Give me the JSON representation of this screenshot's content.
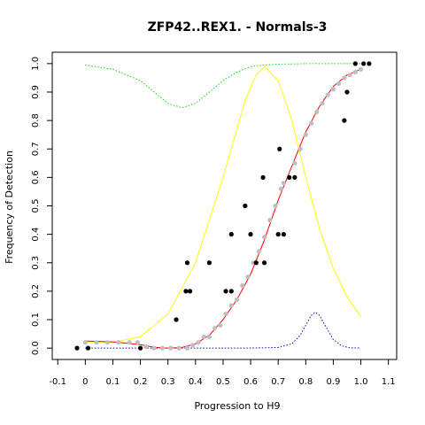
{
  "chart_data": {
    "type": "scatter",
    "title": "ZFP42..REX1. - Normals-3",
    "xlabel": "Progression to H9",
    "ylabel": "Frequency of Detection",
    "xlim": [
      -0.12,
      1.13
    ],
    "ylim": [
      -0.04,
      1.04
    ],
    "x_ticks": [
      "-0.1",
      "0",
      "0.1",
      "0.2",
      "0.3",
      "0.4",
      "0.5",
      "0.6",
      "0.7",
      "0.8",
      "0.9",
      "1.0",
      "1.1"
    ],
    "y_ticks": [
      "0.0",
      "0.1",
      "0.2",
      "0.3",
      "0.4",
      "0.5",
      "0.6",
      "0.7",
      "0.8",
      "0.9",
      "1.0"
    ],
    "grid": false,
    "legend": "none",
    "colors": {
      "observed": "#000000",
      "smoothed": "#bebebe",
      "fit": "#ff0000",
      "yellow_curve": "#ffff00",
      "green_curve": "#00dd00",
      "blue_curve": "#0000dd"
    },
    "series": [
      {
        "kind": "points",
        "role": "observed",
        "points": [
          {
            "x": -0.03,
            "y": 0.0
          },
          {
            "x": 0.01,
            "y": 0.0
          },
          {
            "x": 0.2,
            "y": 0.0
          },
          {
            "x": 0.33,
            "y": 0.1
          },
          {
            "x": 0.365,
            "y": 0.2
          },
          {
            "x": 0.37,
            "y": 0.3
          },
          {
            "x": 0.38,
            "y": 0.2
          },
          {
            "x": 0.45,
            "y": 0.3
          },
          {
            "x": 0.51,
            "y": 0.2
          },
          {
            "x": 0.53,
            "y": 0.2
          },
          {
            "x": 0.53,
            "y": 0.4
          },
          {
            "x": 0.58,
            "y": 0.5
          },
          {
            "x": 0.6,
            "y": 0.4
          },
          {
            "x": 0.62,
            "y": 0.3
          },
          {
            "x": 0.645,
            "y": 0.6
          },
          {
            "x": 0.65,
            "y": 0.3
          },
          {
            "x": 0.7,
            "y": 0.4
          },
          {
            "x": 0.705,
            "y": 0.7
          },
          {
            "x": 0.72,
            "y": 0.4
          },
          {
            "x": 0.74,
            "y": 0.6
          },
          {
            "x": 0.76,
            "y": 0.6
          },
          {
            "x": 0.94,
            "y": 0.8
          },
          {
            "x": 0.95,
            "y": 0.9
          },
          {
            "x": 0.98,
            "y": 1.0
          },
          {
            "x": 1.01,
            "y": 1.0
          },
          {
            "x": 1.03,
            "y": 1.0
          }
        ]
      },
      {
        "kind": "points",
        "role": "smoothed",
        "points": [
          {
            "x": 0.0,
            "y": 0.02
          },
          {
            "x": 0.04,
            "y": 0.02
          },
          {
            "x": 0.08,
            "y": 0.02
          },
          {
            "x": 0.12,
            "y": 0.02
          },
          {
            "x": 0.16,
            "y": 0.02
          },
          {
            "x": 0.19,
            "y": 0.02
          },
          {
            "x": 0.22,
            "y": 0.005
          },
          {
            "x": 0.25,
            "y": 0.0
          },
          {
            "x": 0.28,
            "y": 0.0
          },
          {
            "x": 0.31,
            "y": 0.0
          },
          {
            "x": 0.34,
            "y": 0.0
          },
          {
            "x": 0.37,
            "y": 0.0
          },
          {
            "x": 0.39,
            "y": 0.01
          },
          {
            "x": 0.41,
            "y": 0.02
          },
          {
            "x": 0.43,
            "y": 0.04
          },
          {
            "x": 0.45,
            "y": 0.04
          },
          {
            "x": 0.47,
            "y": 0.07
          },
          {
            "x": 0.49,
            "y": 0.08
          },
          {
            "x": 0.51,
            "y": 0.12
          },
          {
            "x": 0.53,
            "y": 0.15
          },
          {
            "x": 0.55,
            "y": 0.17
          },
          {
            "x": 0.57,
            "y": 0.22
          },
          {
            "x": 0.59,
            "y": 0.25
          },
          {
            "x": 0.61,
            "y": 0.3
          },
          {
            "x": 0.63,
            "y": 0.34
          },
          {
            "x": 0.65,
            "y": 0.39
          },
          {
            "x": 0.67,
            "y": 0.45
          },
          {
            "x": 0.69,
            "y": 0.5
          },
          {
            "x": 0.71,
            "y": 0.56
          },
          {
            "x": 0.72,
            "y": 0.58
          },
          {
            "x": 0.74,
            "y": 0.6
          },
          {
            "x": 0.76,
            "y": 0.65
          },
          {
            "x": 0.78,
            "y": 0.7
          },
          {
            "x": 0.8,
            "y": 0.75
          },
          {
            "x": 0.82,
            "y": 0.79
          },
          {
            "x": 0.84,
            "y": 0.83
          },
          {
            "x": 0.86,
            "y": 0.86
          },
          {
            "x": 0.88,
            "y": 0.89
          },
          {
            "x": 0.9,
            "y": 0.91
          },
          {
            "x": 0.92,
            "y": 0.93
          },
          {
            "x": 0.94,
            "y": 0.95
          },
          {
            "x": 0.96,
            "y": 0.96
          },
          {
            "x": 0.98,
            "y": 0.97
          },
          {
            "x": 1.0,
            "y": 0.98
          }
        ]
      },
      {
        "kind": "line",
        "role": "fit",
        "points": [
          {
            "x": 0.0,
            "y": 0.025
          },
          {
            "x": 0.1,
            "y": 0.022
          },
          {
            "x": 0.2,
            "y": 0.012
          },
          {
            "x": 0.25,
            "y": 0.003
          },
          {
            "x": 0.3,
            "y": 0.0
          },
          {
            "x": 0.35,
            "y": 0.002
          },
          {
            "x": 0.4,
            "y": 0.015
          },
          {
            "x": 0.45,
            "y": 0.045
          },
          {
            "x": 0.5,
            "y": 0.1
          },
          {
            "x": 0.55,
            "y": 0.17
          },
          {
            "x": 0.6,
            "y": 0.26
          },
          {
            "x": 0.65,
            "y": 0.38
          },
          {
            "x": 0.7,
            "y": 0.52
          },
          {
            "x": 0.75,
            "y": 0.64
          },
          {
            "x": 0.8,
            "y": 0.76
          },
          {
            "x": 0.85,
            "y": 0.85
          },
          {
            "x": 0.9,
            "y": 0.92
          },
          {
            "x": 0.95,
            "y": 0.96
          },
          {
            "x": 1.0,
            "y": 0.98
          }
        ]
      },
      {
        "kind": "line",
        "role": "yellow_curve",
        "dashed": false,
        "points": [
          {
            "x": 0.0,
            "y": 0.02
          },
          {
            "x": 0.1,
            "y": 0.02
          },
          {
            "x": 0.2,
            "y": 0.04
          },
          {
            "x": 0.3,
            "y": 0.12
          },
          {
            "x": 0.4,
            "y": 0.3
          },
          {
            "x": 0.5,
            "y": 0.6
          },
          {
            "x": 0.58,
            "y": 0.87
          },
          {
            "x": 0.62,
            "y": 0.96
          },
          {
            "x": 0.65,
            "y": 0.99
          },
          {
            "x": 0.7,
            "y": 0.94
          },
          {
            "x": 0.75,
            "y": 0.8
          },
          {
            "x": 0.8,
            "y": 0.6
          },
          {
            "x": 0.85,
            "y": 0.42
          },
          {
            "x": 0.9,
            "y": 0.28
          },
          {
            "x": 0.95,
            "y": 0.18
          },
          {
            "x": 1.0,
            "y": 0.11
          }
        ]
      },
      {
        "kind": "line",
        "role": "green_curve",
        "dashed": true,
        "points": [
          {
            "x": 0.0,
            "y": 0.995
          },
          {
            "x": 0.1,
            "y": 0.98
          },
          {
            "x": 0.2,
            "y": 0.94
          },
          {
            "x": 0.25,
            "y": 0.9
          },
          {
            "x": 0.3,
            "y": 0.86
          },
          {
            "x": 0.35,
            "y": 0.845
          },
          {
            "x": 0.4,
            "y": 0.86
          },
          {
            "x": 0.45,
            "y": 0.9
          },
          {
            "x": 0.5,
            "y": 0.94
          },
          {
            "x": 0.55,
            "y": 0.97
          },
          {
            "x": 0.6,
            "y": 0.99
          },
          {
            "x": 0.65,
            "y": 0.995
          },
          {
            "x": 0.7,
            "y": 0.998
          },
          {
            "x": 0.8,
            "y": 1.0
          },
          {
            "x": 0.9,
            "y": 1.0
          },
          {
            "x": 1.0,
            "y": 1.0
          }
        ]
      },
      {
        "kind": "line",
        "role": "blue_curve",
        "dashed": true,
        "points": [
          {
            "x": 0.0,
            "y": 0.0
          },
          {
            "x": 0.6,
            "y": 0.0
          },
          {
            "x": 0.7,
            "y": 0.002
          },
          {
            "x": 0.75,
            "y": 0.015
          },
          {
            "x": 0.78,
            "y": 0.045
          },
          {
            "x": 0.8,
            "y": 0.08
          },
          {
            "x": 0.82,
            "y": 0.115
          },
          {
            "x": 0.835,
            "y": 0.126
          },
          {
            "x": 0.85,
            "y": 0.115
          },
          {
            "x": 0.87,
            "y": 0.08
          },
          {
            "x": 0.9,
            "y": 0.03
          },
          {
            "x": 0.93,
            "y": 0.008
          },
          {
            "x": 0.96,
            "y": 0.001
          },
          {
            "x": 1.0,
            "y": 0.0
          }
        ]
      }
    ]
  }
}
